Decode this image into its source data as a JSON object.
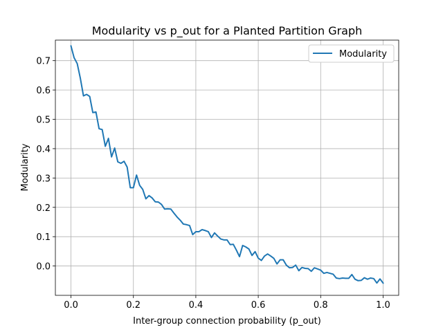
{
  "chart_data": {
    "type": "line",
    "title": "Modularity vs p_out for a Planted Partition Graph",
    "xlabel": "Inter-group connection probability (p_out)",
    "ylabel": "Modularity",
    "xlim": [
      -0.05,
      1.05
    ],
    "ylim": [
      -0.1,
      0.77
    ],
    "xticks": [
      0.0,
      0.2,
      0.4,
      0.6,
      0.8,
      1.0
    ],
    "xtick_labels": [
      "0.0",
      "0.2",
      "0.4",
      "0.6",
      "0.8",
      "1.0"
    ],
    "yticks": [
      0.0,
      0.1,
      0.2,
      0.3,
      0.4,
      0.5,
      0.6,
      0.7
    ],
    "ytick_labels": [
      "0.0",
      "0.1",
      "0.2",
      "0.3",
      "0.4",
      "0.5",
      "0.6",
      "0.7"
    ],
    "grid": true,
    "legend_position": "top-right",
    "series": [
      {
        "name": "Modularity",
        "color": "#1f77b4",
        "x": [
          0.0,
          0.01,
          0.02,
          0.03,
          0.04,
          0.05,
          0.06,
          0.07,
          0.08,
          0.09,
          0.1,
          0.11,
          0.12,
          0.13,
          0.14,
          0.15,
          0.16,
          0.17,
          0.18,
          0.19,
          0.2,
          0.21,
          0.22,
          0.23,
          0.24,
          0.25,
          0.26,
          0.27,
          0.28,
          0.29,
          0.3,
          0.31,
          0.32,
          0.33,
          0.34,
          0.35,
          0.36,
          0.37,
          0.38,
          0.39,
          0.4,
          0.41,
          0.42,
          0.43,
          0.44,
          0.45,
          0.46,
          0.47,
          0.48,
          0.49,
          0.5,
          0.51,
          0.52,
          0.53,
          0.54,
          0.55,
          0.56,
          0.57,
          0.58,
          0.59,
          0.6,
          0.61,
          0.62,
          0.63,
          0.64,
          0.65,
          0.66,
          0.67,
          0.68,
          0.69,
          0.7,
          0.71,
          0.72,
          0.73,
          0.74,
          0.75,
          0.76,
          0.77,
          0.78,
          0.79,
          0.8,
          0.81,
          0.82,
          0.83,
          0.84,
          0.85,
          0.86,
          0.87,
          0.88,
          0.89,
          0.9,
          0.91,
          0.92,
          0.93,
          0.94,
          0.95,
          0.96,
          0.97,
          0.98,
          0.99,
          1.0
        ],
        "y": [
          0.75,
          0.71,
          0.69,
          0.64,
          0.58,
          0.585,
          0.578,
          0.523,
          0.525,
          0.468,
          0.465,
          0.408,
          0.435,
          0.372,
          0.402,
          0.355,
          0.35,
          0.357,
          0.337,
          0.267,
          0.267,
          0.31,
          0.275,
          0.261,
          0.229,
          0.24,
          0.232,
          0.219,
          0.218,
          0.21,
          0.194,
          0.195,
          0.194,
          0.18,
          0.167,
          0.156,
          0.143,
          0.141,
          0.138,
          0.107,
          0.117,
          0.117,
          0.124,
          0.121,
          0.117,
          0.097,
          0.113,
          0.102,
          0.092,
          0.089,
          0.089,
          0.073,
          0.074,
          0.054,
          0.032,
          0.07,
          0.065,
          0.058,
          0.036,
          0.049,
          0.027,
          0.019,
          0.034,
          0.041,
          0.034,
          0.026,
          0.007,
          0.021,
          0.021,
          0.003,
          -0.006,
          -0.005,
          0.003,
          -0.016,
          -0.005,
          -0.008,
          -0.009,
          -0.018,
          -0.006,
          -0.01,
          -0.014,
          -0.025,
          -0.022,
          -0.025,
          -0.028,
          -0.041,
          -0.043,
          -0.041,
          -0.042,
          -0.042,
          -0.029,
          -0.045,
          -0.05,
          -0.049,
          -0.04,
          -0.045,
          -0.041,
          -0.043,
          -0.058,
          -0.044,
          -0.058
        ]
      }
    ]
  }
}
